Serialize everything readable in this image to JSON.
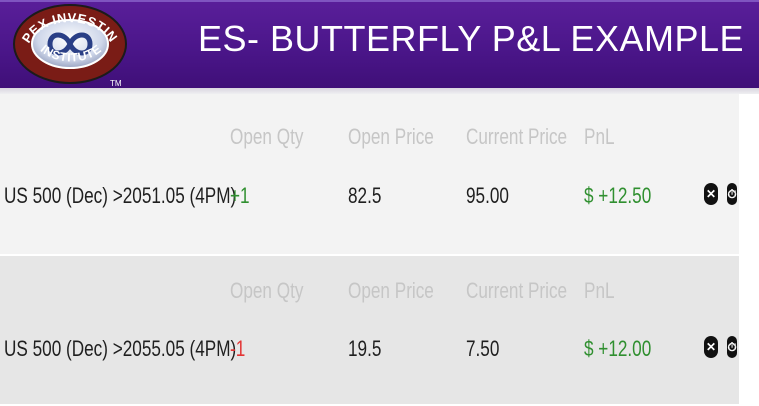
{
  "header": {
    "title": "ES- BUTTERFLY P&L EXAMPLE",
    "logo_top_text": "APEX INVESTING",
    "logo_bottom_text": "INSTITUTE",
    "logo_tm": "TM"
  },
  "table": {
    "columns": [
      "Open Qty",
      "Open Price",
      "Current Price",
      "PnL"
    ],
    "rows": [
      {
        "instrument": "US 500 (Dec) >2051.05 (4PM)",
        "open_qty": "+1",
        "open_price": "82.5",
        "current_price": "95.00",
        "pnl": "$ +12.50",
        "close_icon": "close-circle-icon",
        "clock_icon": "clock-icon"
      },
      {
        "instrument": "US 500 (Dec) >2055.05 (4PM)",
        "open_qty": "-1",
        "open_price": "19.5",
        "current_price": "7.50",
        "pnl": "$ +12.00",
        "close_icon": "close-circle-icon",
        "clock_icon": "clock-icon"
      }
    ]
  },
  "colors": {
    "header_purple": "#4b168a",
    "positive": "#2f8f2f",
    "negative": "#e33434",
    "muted": "#c6c6c6"
  }
}
